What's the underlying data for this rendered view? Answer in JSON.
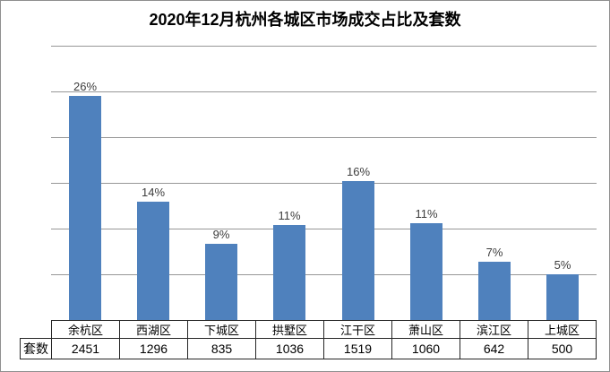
{
  "chart_data": {
    "type": "bar",
    "title": "2020年12月杭州各城区市场成交占比及套数",
    "categories": [
      "余杭区",
      "西湖区",
      "下城区",
      "拱墅区",
      "江干区",
      "萧山区",
      "滨江区",
      "上城区"
    ],
    "series": [
      {
        "name": "套数",
        "values": [
          2451,
          1296,
          835,
          1036,
          1519,
          1060,
          642,
          500
        ]
      }
    ],
    "percent_labels": [
      "26%",
      "14%",
      "9%",
      "11%",
      "16%",
      "11%",
      "7%",
      "5%"
    ],
    "table_row_header": "套数",
    "value_axis": {
      "min": 0,
      "max": 3000,
      "gridline_step": 500,
      "labels_visible": false
    },
    "category_axis_labels_shown_as": "table",
    "legend": "none",
    "grid": true,
    "colors": {
      "bar": "#4F81BD",
      "gridline": "#979797",
      "table_border": "#262626",
      "frame_border": "#8f8f8f",
      "title_text": "#000000",
      "label_text": "#3d3d3d"
    }
  }
}
